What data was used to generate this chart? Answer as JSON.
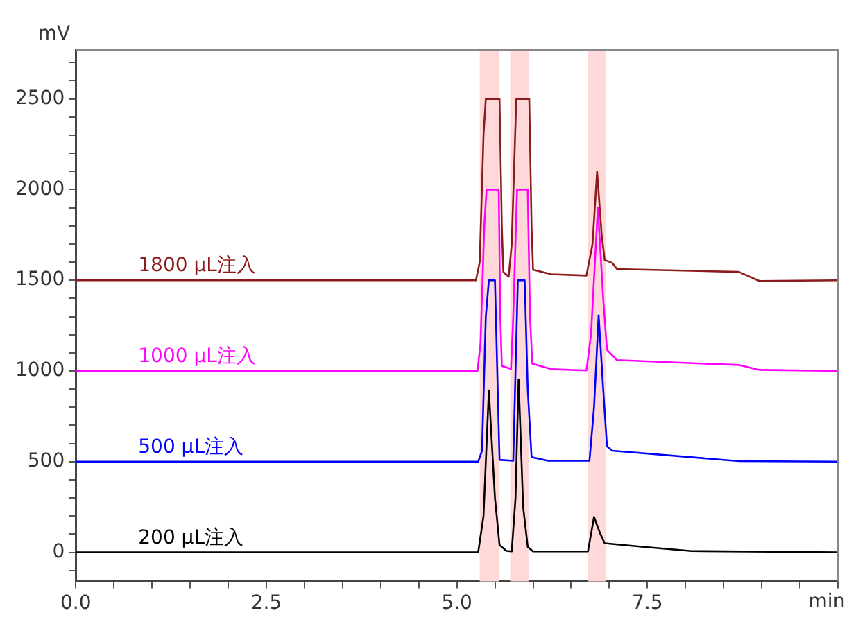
{
  "chart_data": {
    "type": "line",
    "xlabel": "min",
    "ylabel": "mV",
    "xlim": [
      0,
      10
    ],
    "ylim": [
      -160,
      2770
    ],
    "xticks": [
      {
        "value": 0,
        "label": "0.0"
      },
      {
        "value": 0.5,
        "label": null
      },
      {
        "value": 1,
        "label": null
      },
      {
        "value": 1.5,
        "label": null
      },
      {
        "value": 2,
        "label": null
      },
      {
        "value": 2.5,
        "label": "2.5"
      },
      {
        "value": 3,
        "label": null
      },
      {
        "value": 3.5,
        "label": null
      },
      {
        "value": 4,
        "label": null
      },
      {
        "value": 4.5,
        "label": null
      },
      {
        "value": 5,
        "label": "5.0"
      },
      {
        "value": 5.5,
        "label": null
      },
      {
        "value": 6,
        "label": null
      },
      {
        "value": 6.5,
        "label": null
      },
      {
        "value": 7,
        "label": null
      },
      {
        "value": 7.5,
        "label": "7.5"
      },
      {
        "value": 8,
        "label": null
      },
      {
        "value": 8.5,
        "label": null
      },
      {
        "value": 9,
        "label": null
      },
      {
        "value": 9.5,
        "label": null
      },
      {
        "value": 10,
        "label": null
      }
    ],
    "yticks": [
      {
        "value": -100,
        "label": null
      },
      0,
      {
        "value": 100,
        "label": null
      },
      {
        "value": 200,
        "label": null
      },
      {
        "value": 300,
        "label": null
      },
      {
        "value": 400,
        "label": null
      },
      500,
      {
        "value": 600,
        "label": null
      },
      {
        "value": 700,
        "label": null
      },
      {
        "value": 800,
        "label": null
      },
      {
        "value": 900,
        "label": null
      },
      1000,
      {
        "value": 1100,
        "label": null
      },
      {
        "value": 1200,
        "label": null
      },
      {
        "value": 1300,
        "label": null
      },
      {
        "value": 1400,
        "label": null
      },
      1500,
      {
        "value": 1600,
        "label": null
      },
      {
        "value": 1700,
        "label": null
      },
      {
        "value": 1800,
        "label": null
      },
      {
        "value": 1900,
        "label": null
      },
      2000,
      {
        "value": 2100,
        "label": null
      },
      {
        "value": 2200,
        "label": null
      },
      {
        "value": 2300,
        "label": null
      },
      {
        "value": 2400,
        "label": null
      },
      2500,
      {
        "value": 2600,
        "label": null
      },
      {
        "value": 2700,
        "label": null
      }
    ],
    "grid": false,
    "legend": false,
    "marker": "none",
    "line_style": "solid",
    "bands": [
      {
        "axis": "x",
        "from": 5.3,
        "to": 5.55,
        "color": "#ffd9d9"
      },
      {
        "axis": "x",
        "from": 5.7,
        "to": 5.94,
        "color": "#ffd9d9"
      },
      {
        "axis": "x",
        "from": 6.72,
        "to": 6.96,
        "color": "#ffd9d9"
      }
    ],
    "series": [
      {
        "name": "1800 μL注入",
        "color": "#8b1a1a",
        "x": [
          0,
          5.25,
          5.3,
          5.35,
          5.38,
          5.56,
          5.59,
          5.61,
          5.68,
          5.72,
          5.78,
          5.95,
          5.98,
          6.0,
          6.24,
          6.7,
          6.78,
          6.84,
          6.9,
          6.94,
          7.04,
          7.1,
          8.7,
          8.97,
          10
        ],
        "values": [
          1500,
          1500,
          1600,
          2300,
          2500,
          2500,
          1800,
          1546,
          1520,
          1700,
          2500,
          2500,
          1800,
          1558,
          1533,
          1526,
          1700,
          2100,
          1750,
          1612,
          1595,
          1562,
          1546,
          1496,
          1500
        ]
      },
      {
        "name": "1000 μL注入",
        "color": "#ff00ff",
        "x": [
          0,
          5.27,
          5.31,
          5.36,
          5.39,
          5.55,
          5.57,
          5.59,
          5.71,
          5.74,
          5.79,
          5.93,
          5.96,
          5.99,
          6.24,
          6.7,
          6.76,
          6.85,
          6.92,
          6.97,
          7.1,
          8.7,
          8.97,
          10
        ],
        "values": [
          1000,
          1000,
          1150,
          1800,
          2000,
          2000,
          1300,
          1028,
          1011,
          1300,
          2000,
          2000,
          1300,
          1040,
          1010,
          1003,
          1200,
          1900,
          1400,
          1116,
          1060,
          1033,
          1006,
          1000
        ]
      },
      {
        "name": "500 μL注入",
        "color": "#0000ff",
        "x": [
          0,
          5.28,
          5.33,
          5.38,
          5.42,
          5.5,
          5.53,
          5.56,
          5.74,
          5.77,
          5.8,
          5.89,
          5.93,
          5.98,
          6.2,
          6.74,
          6.8,
          6.86,
          6.92,
          6.97,
          7.04,
          8.7,
          10
        ],
        "values": [
          500,
          500,
          560,
          1300,
          1500,
          1500,
          1000,
          510,
          505,
          1000,
          1500,
          1500,
          900,
          525,
          505,
          505,
          800,
          1307,
          900,
          584,
          560,
          503,
          500
        ]
      },
      {
        "name": "200 μL注入",
        "color": "#000000",
        "x": [
          0,
          5.28,
          5.35,
          5.42,
          5.5,
          5.56,
          5.65,
          5.72,
          5.77,
          5.81,
          5.87,
          5.93,
          6.0,
          6.72,
          6.8,
          6.88,
          6.94,
          7.45,
          8.08,
          10
        ],
        "values": [
          0,
          0,
          200,
          893,
          300,
          40,
          8,
          5,
          300,
          954,
          250,
          30,
          5,
          5,
          195,
          104,
          50,
          30,
          7,
          0
        ]
      }
    ]
  }
}
